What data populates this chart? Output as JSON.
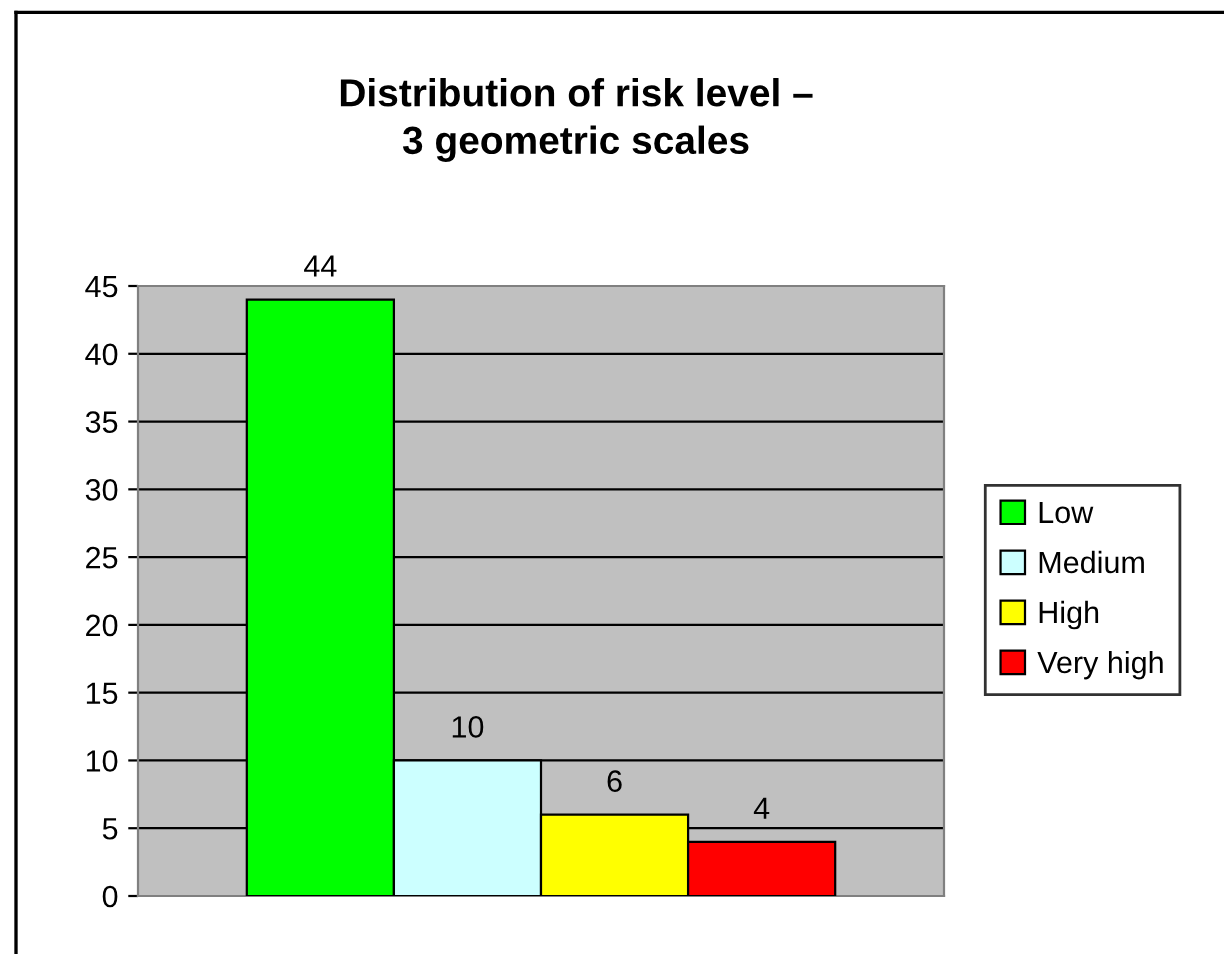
{
  "chart_data": {
    "type": "bar",
    "title": "Distribution of risk level –\n3 geometric scales",
    "categories": [
      null
    ],
    "series": [
      {
        "name": "Low",
        "color": "#00ff00",
        "values": [
          44
        ]
      },
      {
        "name": "Medium",
        "color": "#ccffff",
        "values": [
          10
        ]
      },
      {
        "name": "High",
        "color": "#ffff00",
        "values": [
          6
        ]
      },
      {
        "name": "Very high",
        "color": "#ff0000",
        "values": [
          4
        ]
      }
    ],
    "ylim": [
      0,
      45
    ],
    "yticks": [
      0,
      5,
      10,
      15,
      20,
      25,
      30,
      35,
      40,
      45
    ],
    "grid": "y",
    "legend": "right",
    "data_labels": true
  }
}
